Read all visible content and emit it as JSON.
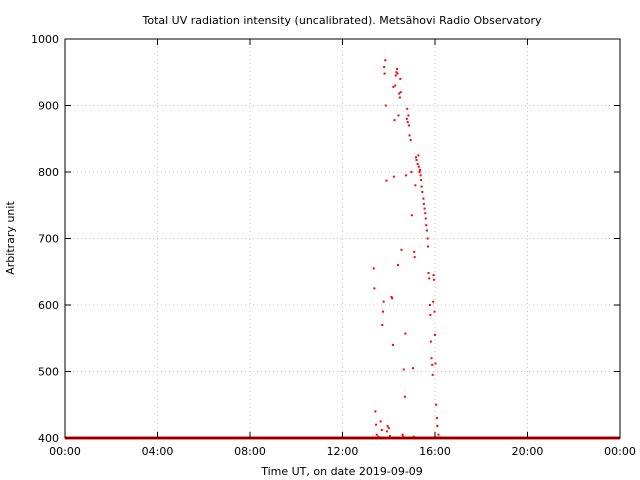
{
  "chart_data": {
    "type": "scatter",
    "title": "Total UV radiation intensity (uncalibrated). Metsähovi Radio Observatory",
    "xlabel": "Time UT, on date 2019-09-09",
    "ylabel": "Arbitrary unit",
    "xlim": [
      0,
      24
    ],
    "ylim": [
      400,
      1000
    ],
    "x_ticks": [
      0,
      4,
      8,
      12,
      16,
      20,
      24
    ],
    "x_tick_labels": [
      "00:00",
      "04:00",
      "08:00",
      "12:00",
      "16:00",
      "20:00",
      "00:00"
    ],
    "y_ticks": [
      400,
      500,
      600,
      700,
      800,
      900,
      1000
    ],
    "y_tick_labels": [
      "400",
      "500",
      "600",
      "700",
      "800",
      "900",
      "1000"
    ],
    "grid": true,
    "series": [
      {
        "color": "#ff0000",
        "baseline": {
          "y": 400,
          "x_range": [
            0,
            24
          ]
        },
        "points": [
          [
            13.35,
            655
          ],
          [
            13.38,
            625
          ],
          [
            13.42,
            440
          ],
          [
            13.45,
            420
          ],
          [
            13.48,
            405
          ],
          [
            13.55,
            402
          ],
          [
            13.65,
            425
          ],
          [
            13.7,
            412
          ],
          [
            13.72,
            570
          ],
          [
            13.75,
            590
          ],
          [
            13.78,
            605
          ],
          [
            13.8,
            958
          ],
          [
            13.82,
            948
          ],
          [
            13.85,
            968
          ],
          [
            13.87,
            900
          ],
          [
            13.9,
            787
          ],
          [
            13.92,
            410
          ],
          [
            13.95,
            418
          ],
          [
            14.0,
            415
          ],
          [
            14.05,
            403
          ],
          [
            14.12,
            612
          ],
          [
            14.15,
            610
          ],
          [
            14.18,
            540
          ],
          [
            14.2,
            928
          ],
          [
            14.22,
            793
          ],
          [
            14.25,
            878
          ],
          [
            14.28,
            930
          ],
          [
            14.3,
            945
          ],
          [
            14.33,
            950
          ],
          [
            14.36,
            955
          ],
          [
            14.38,
            948
          ],
          [
            14.4,
            660
          ],
          [
            14.42,
            885
          ],
          [
            14.45,
            918
          ],
          [
            14.48,
            912
          ],
          [
            14.5,
            940
          ],
          [
            14.52,
            920
          ],
          [
            14.55,
            683
          ],
          [
            14.6,
            405
          ],
          [
            14.62,
            402
          ],
          [
            14.65,
            503
          ],
          [
            14.7,
            462
          ],
          [
            14.72,
            557
          ],
          [
            14.75,
            795
          ],
          [
            14.78,
            880
          ],
          [
            14.8,
            895
          ],
          [
            14.82,
            875
          ],
          [
            14.85,
            885
          ],
          [
            14.88,
            870
          ],
          [
            14.9,
            855
          ],
          [
            14.95,
            848
          ],
          [
            14.98,
            800
          ],
          [
            15.0,
            735
          ],
          [
            15.05,
            505
          ],
          [
            15.08,
            402
          ],
          [
            15.1,
            680
          ],
          [
            15.12,
            672
          ],
          [
            15.15,
            780
          ],
          [
            15.18,
            822
          ],
          [
            15.2,
            818
          ],
          [
            15.25,
            812
          ],
          [
            15.28,
            825
          ],
          [
            15.3,
            808
          ],
          [
            15.33,
            800
          ],
          [
            15.35,
            803
          ],
          [
            15.38,
            795
          ],
          [
            15.4,
            788
          ],
          [
            15.42,
            778
          ],
          [
            15.45,
            770
          ],
          [
            15.5,
            760
          ],
          [
            15.52,
            752
          ],
          [
            15.55,
            745
          ],
          [
            15.58,
            738
          ],
          [
            15.6,
            730
          ],
          [
            15.62,
            720
          ],
          [
            15.65,
            712
          ],
          [
            15.68,
            700
          ],
          [
            15.7,
            688
          ],
          [
            15.72,
            648
          ],
          [
            15.75,
            640
          ],
          [
            15.78,
            600
          ],
          [
            15.8,
            585
          ],
          [
            15.82,
            545
          ],
          [
            15.85,
            520
          ],
          [
            15.88,
            510
          ],
          [
            15.9,
            495
          ],
          [
            15.92,
            605
          ],
          [
            15.94,
            645
          ],
          [
            15.96,
            638
          ],
          [
            15.98,
            590
          ],
          [
            16.0,
            555
          ],
          [
            16.02,
            512
          ],
          [
            16.05,
            450
          ],
          [
            16.08,
            430
          ],
          [
            16.1,
            418
          ],
          [
            16.15,
            405
          ],
          [
            16.2,
            401
          ]
        ]
      }
    ]
  }
}
